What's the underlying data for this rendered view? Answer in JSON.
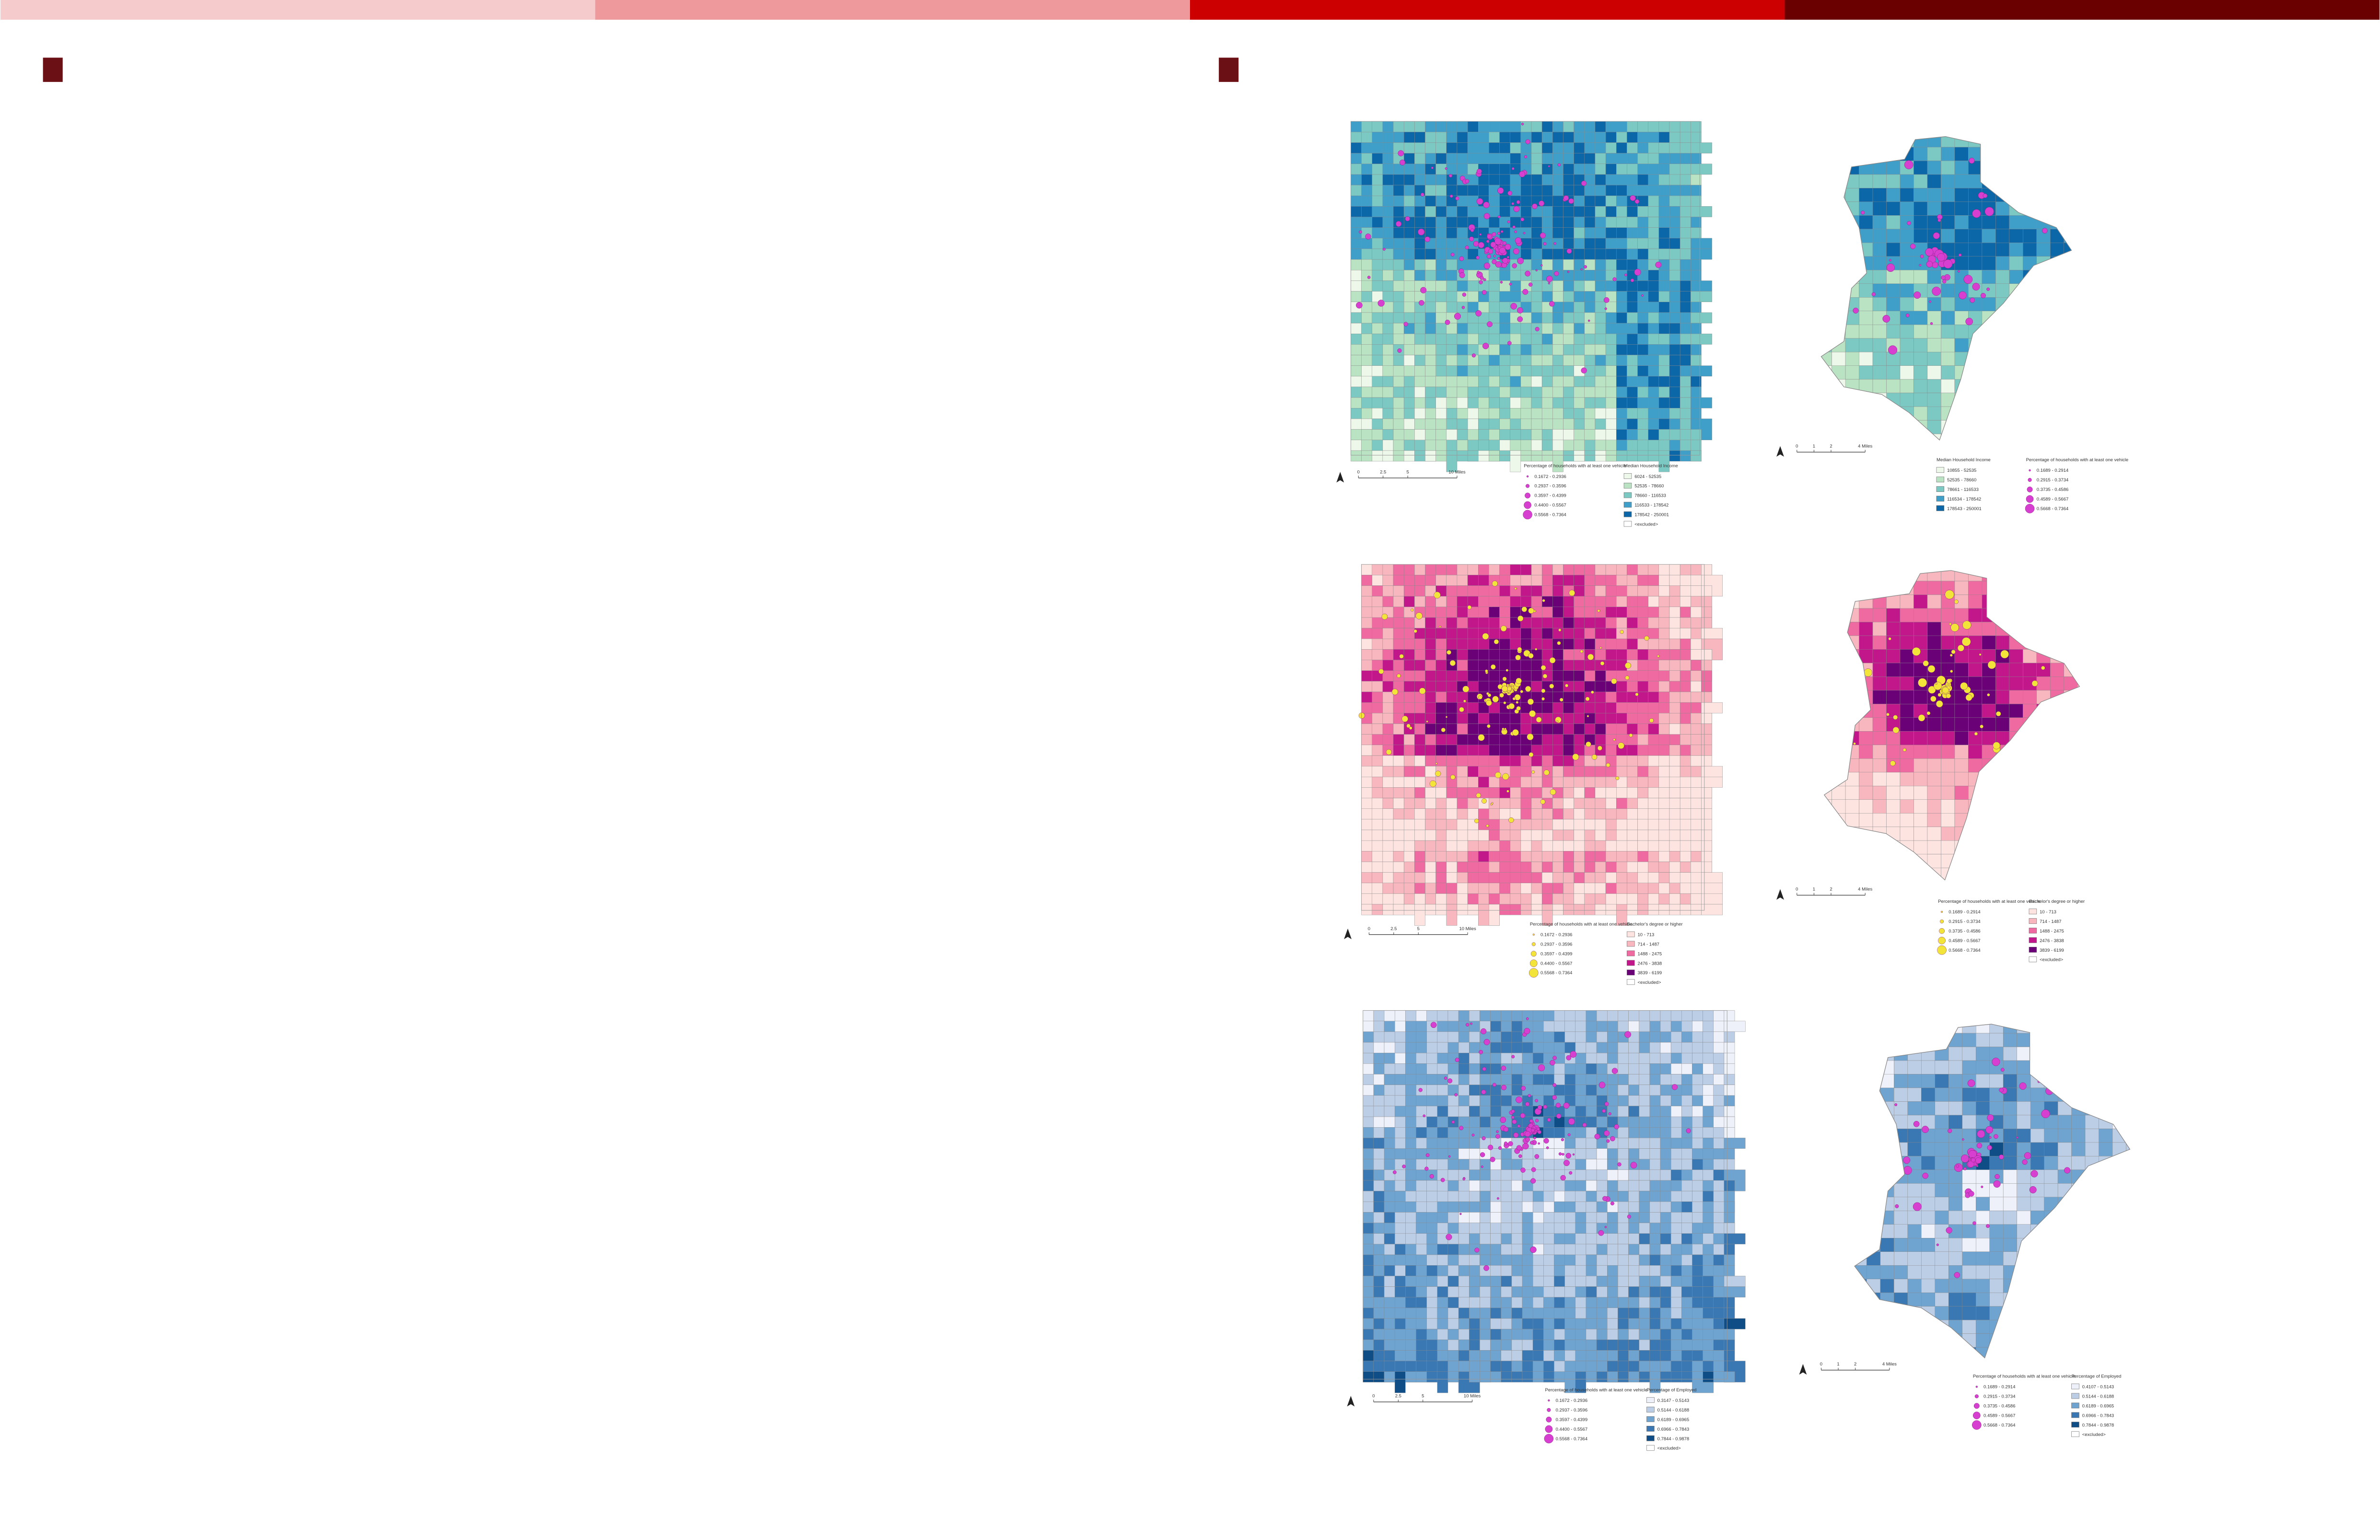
{
  "maps": [
    {
      "scale": [
        "0",
        "2.5",
        "5",
        "10 Miles"
      ],
      "vehicle_legend": {
        "title": "Percentage of households with at least one vehicle",
        "color": "#d63fd0",
        "items": [
          "0.1672 - 0.2936",
          "0.2937 - 0.3596",
          "0.3597 - 0.4399",
          "0.4400 - 0.5567",
          "0.5568 - 0.7364"
        ]
      },
      "variable_legend": {
        "title": "Median Household Income",
        "colors": [
          "#eef8ea",
          "#b9e3c2",
          "#7cc9c3",
          "#3f9fc9",
          "#0b67a8"
        ],
        "items": [
          "6024 - 52535",
          "52535 - 78660",
          "78660 - 116533",
          "116533 - 178542",
          "178542 - 250001",
          "<excluded>"
        ]
      }
    },
    {
      "scale": [
        "0",
        "1",
        "2",
        "4 Miles"
      ],
      "vehicle_legend": {
        "title": "Percentage of households with at least one vehicle",
        "color": "#d63fd0",
        "items": [
          "0.1689 - 0.2914",
          "0.2915 - 0.3734",
          "0.3735 - 0.4586",
          "0.4589 - 0.5667",
          "0.5668 - 0.7364"
        ]
      },
      "variable_legend": {
        "title": "Median Household Income",
        "colors": [
          "#eef8ea",
          "#b9e3c2",
          "#7cc9c3",
          "#3f9fc9",
          "#0b67a8"
        ],
        "items": [
          "10855 - 52535",
          "52535 - 78660",
          "78661 - 116533",
          "116534 - 178542",
          "178543 - 250001"
        ]
      }
    },
    {
      "scale": [
        "0",
        "2.5",
        "5",
        "10 Miles"
      ],
      "vehicle_legend": {
        "title": "Percentage of households with at least one vehicle",
        "color": "#f3e43a",
        "items": [
          "0.1672 - 0.2936",
          "0.2937 - 0.3596",
          "0.3597 - 0.4399",
          "0.4400 - 0.5567",
          "0.5568 - 0.7364"
        ]
      },
      "variable_legend": {
        "title": "Bachelor's degree or higher",
        "colors": [
          "#fde4e1",
          "#f8b6bf",
          "#ef6aa0",
          "#c2178b",
          "#6a0177"
        ],
        "items": [
          "10 - 713",
          "714 - 1487",
          "1488 - 2475",
          "2476 - 3838",
          "3839 - 6199",
          "<excluded>"
        ]
      }
    },
    {
      "scale": [
        "0",
        "1",
        "2",
        "4 Miles"
      ],
      "vehicle_legend": {
        "title": "Percentage of households with at least one vehicle",
        "color": "#f3e43a",
        "items": [
          "0.1689 - 0.2914",
          "0.2915 - 0.3734",
          "0.3735 - 0.4586",
          "0.4589 - 0.5667",
          "0.5668 - 0.7364"
        ]
      },
      "variable_legend": {
        "title": "Bachelor's degree or higher",
        "colors": [
          "#fde4e1",
          "#f8b6bf",
          "#ef6aa0",
          "#c2178b",
          "#6a0177"
        ],
        "items": [
          "10 - 713",
          "714 - 1487",
          "1488 - 2475",
          "2476 - 3838",
          "3839 - 6199",
          "<excluded>"
        ]
      }
    },
    {
      "scale": [
        "0",
        "2.5",
        "5",
        "10 Miles"
      ],
      "vehicle_legend": {
        "title": "Percentage of households with at least one vehicle",
        "color": "#d63fd0",
        "items": [
          "0.1672 - 0.2936",
          "0.2937 - 0.3596",
          "0.3597 - 0.4399",
          "0.4400 - 0.5567",
          "0.5568 - 0.7364"
        ]
      },
      "variable_legend": {
        "title": "Percentage of Employed",
        "colors": [
          "#eef0fa",
          "#bccde6",
          "#6fa3d0",
          "#3a78b3",
          "#0f4d86"
        ],
        "items": [
          "0.3147 - 0.5143",
          "0.5144 - 0.6188",
          "0.6189 - 0.6965",
          "0.6966 - 0.7843",
          "0.7844 - 0.9878",
          "<excluded>"
        ]
      }
    },
    {
      "scale": [
        "0",
        "1",
        "2",
        "4 Miles"
      ],
      "vehicle_legend": {
        "title": "Percentage of households with at least one vehicle",
        "color": "#d63fd0",
        "items": [
          "0.1689 - 0.2914",
          "0.2915 - 0.3734",
          "0.3735 - 0.4586",
          "0.4589 - 0.5667",
          "0.5668 - 0.7364"
        ]
      },
      "variable_legend": {
        "title": "Percentage of Employed",
        "colors": [
          "#eef0fa",
          "#bccde6",
          "#6fa3d0",
          "#3a78b3",
          "#0f4d86"
        ],
        "items": [
          "0.4107 - 0.5143",
          "0.5144 - 0.6188",
          "0.6189 - 0.6965",
          "0.6966 - 0.7843",
          "0.7844 - 0.9878",
          "<excluded>"
        ]
      }
    }
  ]
}
